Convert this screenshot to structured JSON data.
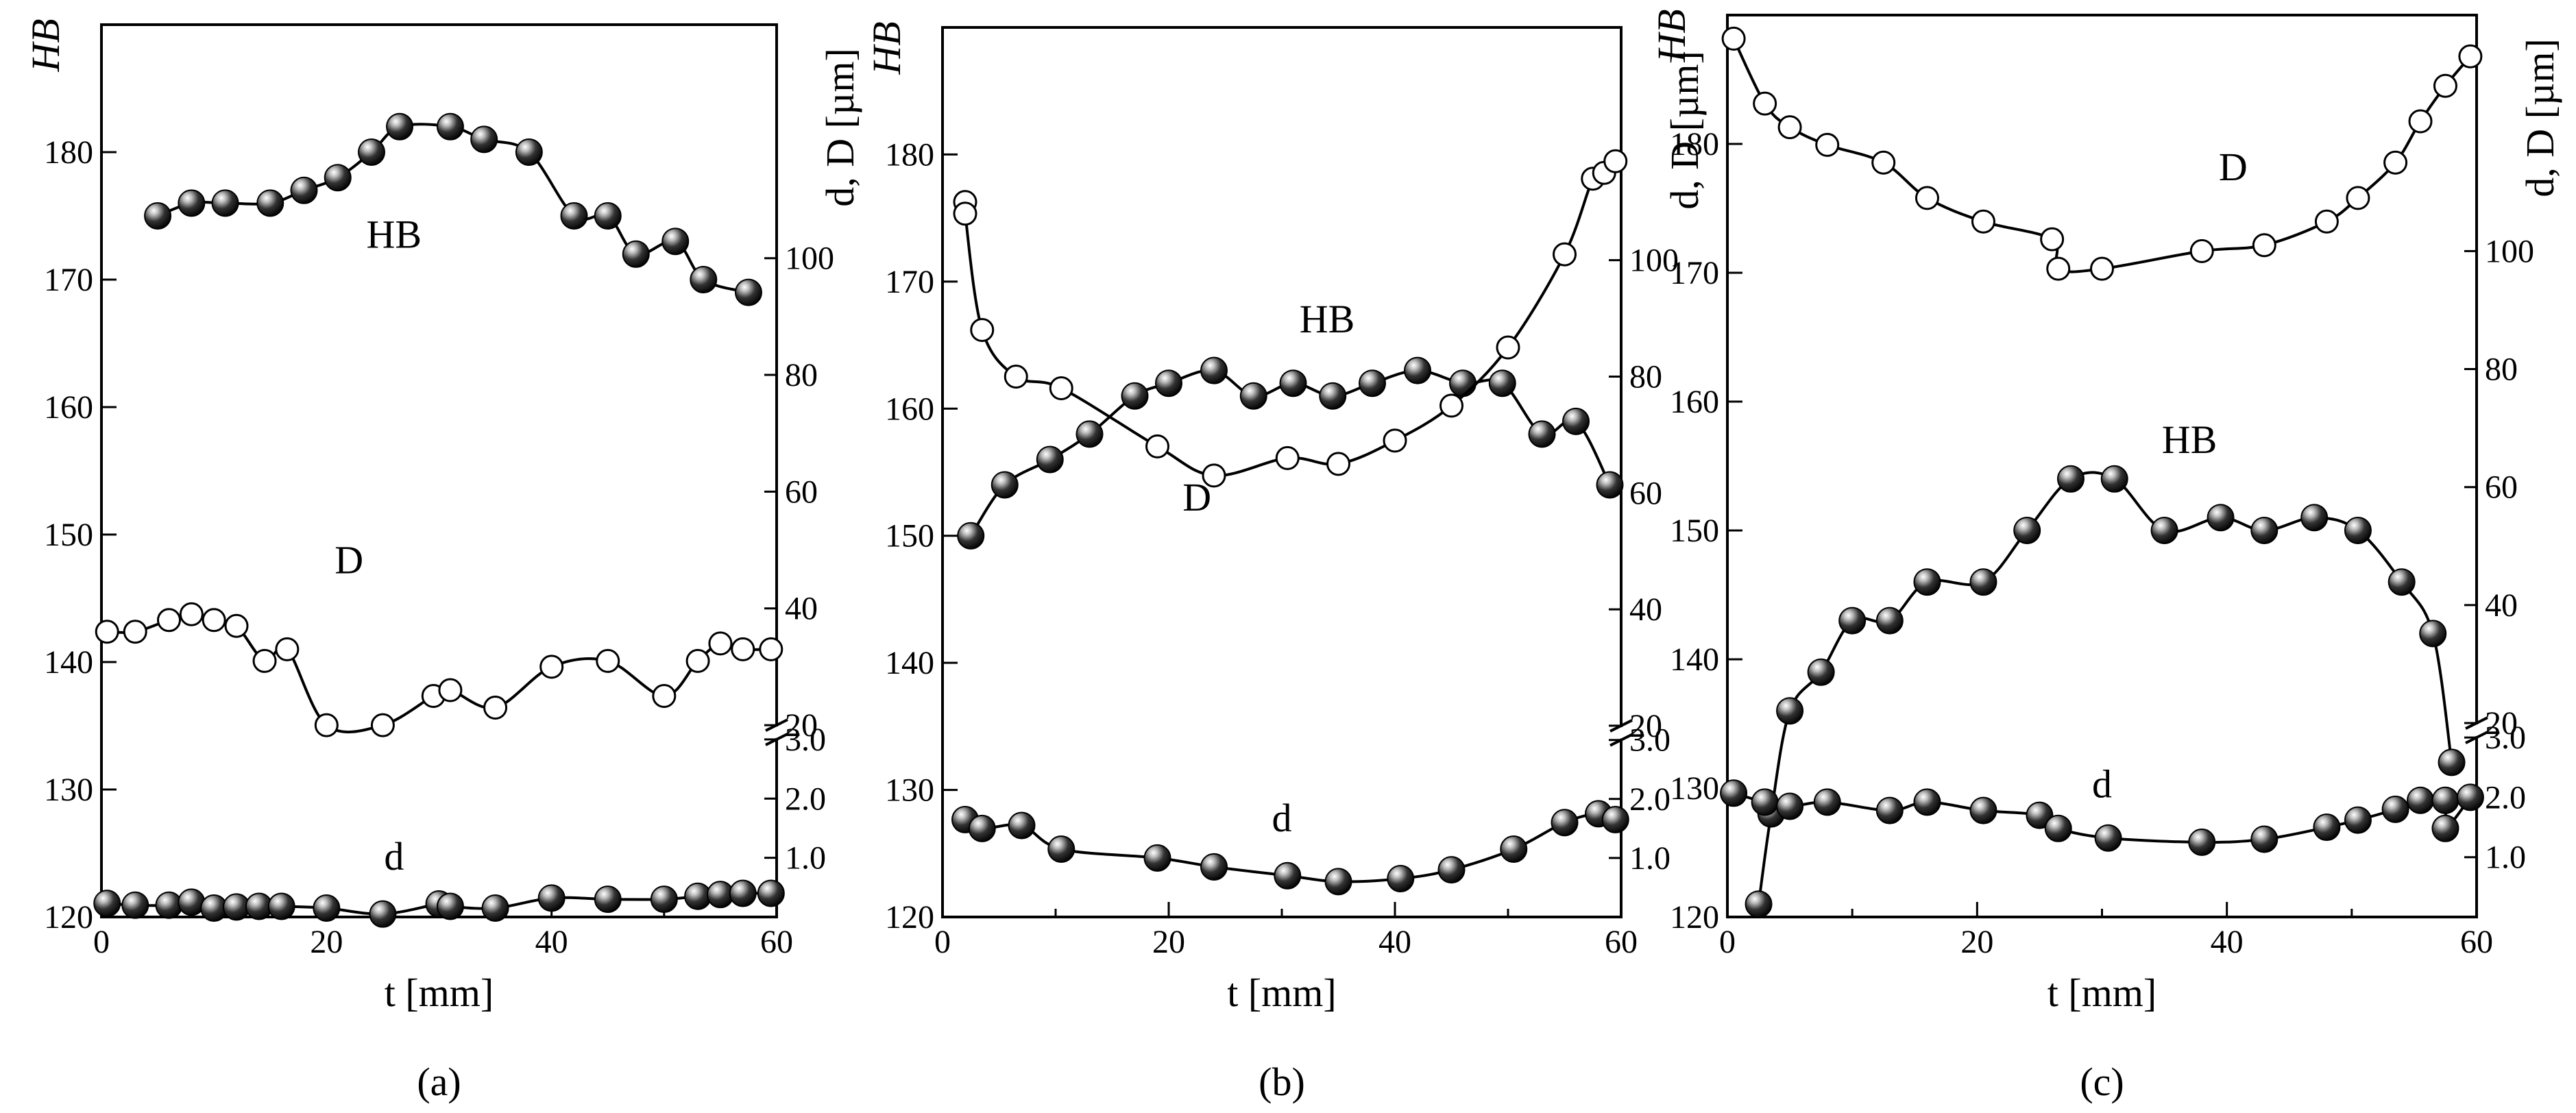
{
  "figure_captions": [
    "(a)",
    "(b)",
    "(c)"
  ],
  "chart_data": [
    {
      "type": "line",
      "panel": "a",
      "caption_letter": "a",
      "xlabel": "t [mm]",
      "ylabel_left": "HB",
      "ylabel_right": "d, D [µm]",
      "xlim": [
        0,
        60
      ],
      "ylim_left": [
        120,
        190
      ],
      "x_ticks": [
        0,
        20,
        40,
        60
      ],
      "y_ticks_left": [
        120,
        130,
        140,
        150,
        160,
        170,
        180
      ],
      "right_axis_upper": {
        "ylim": [
          20,
          140
        ],
        "ticks": [
          20,
          40,
          60,
          80,
          100
        ]
      },
      "right_axis_lower": {
        "ylim": [
          0,
          3.0
        ],
        "ticks": [
          1.0,
          2.0,
          3.0
        ]
      },
      "series": [
        {
          "name": "HB",
          "axis": "left",
          "marker": "sphere",
          "x": [
            5,
            8,
            11,
            15,
            18,
            21,
            24,
            26.5,
            31,
            34,
            38,
            42,
            45,
            47.5,
            51,
            53.5,
            57.5
          ],
          "y": [
            175,
            176,
            176,
            176,
            177,
            178,
            180,
            182,
            182,
            181,
            180,
            175,
            175,
            172,
            173,
            170,
            169
          ],
          "label_at": [
            26,
            172.5
          ]
        },
        {
          "name": "D",
          "axis": "right_upper",
          "marker": "open",
          "x": [
            0.5,
            3,
            6,
            8,
            10,
            12,
            14.5,
            16.5,
            20,
            25,
            29.5,
            31,
            35,
            40,
            45,
            50,
            53,
            55,
            57,
            59.5
          ],
          "y": [
            36,
            36,
            38,
            39,
            38,
            37,
            31,
            33,
            20,
            20,
            25,
            26,
            23,
            30,
            31,
            25,
            31,
            34,
            33,
            33
          ],
          "label_at": [
            22,
            46
          ]
        },
        {
          "name": "d",
          "axis": "right_lower",
          "marker": "sphere",
          "x": [
            0.5,
            3,
            6,
            8,
            10,
            12,
            14,
            16,
            20,
            25,
            30,
            31,
            35,
            40,
            45,
            50,
            53,
            55,
            57,
            59.5
          ],
          "y": [
            0.23,
            0.2,
            0.2,
            0.25,
            0.15,
            0.17,
            0.18,
            0.18,
            0.15,
            0.05,
            0.22,
            0.18,
            0.15,
            0.32,
            0.3,
            0.3,
            0.35,
            0.38,
            0.4,
            0.4
          ],
          "label_at": [
            26,
            0.8
          ]
        }
      ]
    },
    {
      "type": "line",
      "panel": "b",
      "caption_letter": "b",
      "xlabel": "t [mm]",
      "ylabel_left": "HB",
      "ylabel_right": "d, D [µm]",
      "xlim": [
        0,
        60
      ],
      "ylim_left": [
        120,
        190
      ],
      "x_ticks": [
        0,
        20,
        40,
        60
      ],
      "y_ticks_left": [
        120,
        130,
        140,
        150,
        160,
        170,
        180
      ],
      "right_axis_upper": {
        "ylim": [
          20,
          140
        ],
        "ticks": [
          20,
          40,
          60,
          80,
          100
        ]
      },
      "right_axis_lower": {
        "ylim": [
          0,
          3.0
        ],
        "ticks": [
          1.0,
          2.0,
          3.0
        ]
      },
      "series": [
        {
          "name": "HB",
          "axis": "left",
          "marker": "sphere",
          "x": [
            2.5,
            5.5,
            9.5,
            13,
            17,
            20,
            24,
            27.5,
            31,
            34.5,
            38,
            42,
            46,
            49.5,
            53,
            56,
            59
          ],
          "y": [
            150,
            154,
            156,
            158,
            161,
            162,
            163,
            161,
            162,
            161,
            162,
            163,
            162,
            162,
            158,
            159,
            154
          ],
          "label_at": [
            34,
            166
          ]
        },
        {
          "name": "D",
          "axis": "right_upper",
          "marker": "open",
          "x": [
            2,
            2,
            3.5,
            6.5,
            10.5,
            19,
            24,
            30.5,
            35,
            40,
            45,
            50,
            55,
            57.5,
            58.5,
            59.5
          ],
          "y": [
            110,
            108,
            88,
            80,
            78,
            68,
            63,
            66,
            65,
            69,
            75,
            85,
            101,
            114,
            115,
            117
          ],
          "label_at": [
            22.5,
            57
          ]
        },
        {
          "name": "d",
          "axis": "right_lower",
          "marker": "sphere",
          "x": [
            2,
            3.5,
            7,
            10.5,
            19,
            24,
            30.5,
            35,
            40.5,
            45,
            50.5,
            55,
            58,
            59.5
          ],
          "y": [
            1.65,
            1.5,
            1.55,
            1.15,
            1.0,
            0.85,
            0.7,
            0.6,
            0.65,
            0.8,
            1.15,
            1.6,
            1.75,
            1.65
          ],
          "label_at": [
            30,
            1.45
          ]
        }
      ]
    },
    {
      "type": "line",
      "panel": "c",
      "caption_letter": "c",
      "xlabel": "t [mm]",
      "ylabel_left": "HB",
      "ylabel_right": "d, D [µm]",
      "xlim": [
        0,
        60
      ],
      "ylim_left": [
        120,
        190
      ],
      "x_ticks": [
        0,
        20,
        40,
        60
      ],
      "y_ticks_left": [
        120,
        130,
        140,
        150,
        160,
        170,
        180
      ],
      "right_axis_upper": {
        "ylim": [
          20,
          140
        ],
        "ticks": [
          20,
          40,
          60,
          80,
          100
        ]
      },
      "right_axis_lower": {
        "ylim": [
          0,
          3.0
        ],
        "ticks": [
          1.0,
          2.0,
          3.0
        ]
      },
      "series": [
        {
          "name": "HB",
          "axis": "left",
          "marker": "sphere",
          "x": [
            2.5,
            3.5,
            5,
            7.5,
            10,
            13,
            16,
            20.5,
            24,
            27.5,
            31,
            35,
            39.5,
            43,
            47,
            50.5,
            54,
            56.5,
            58
          ],
          "y": [
            121,
            128,
            136,
            139,
            143,
            143,
            146,
            146,
            150,
            154,
            154,
            150,
            151,
            150,
            151,
            150,
            146,
            142,
            132
          ],
          "label_at": [
            37,
            156
          ]
        },
        {
          "name": "D",
          "axis": "right_upper",
          "marker": "open",
          "x": [
            0.5,
            3,
            5,
            8,
            12.5,
            16,
            20.5,
            26,
            26.5,
            30,
            38,
            43,
            48,
            50.5,
            53.5,
            55.5,
            57.5,
            59.5
          ],
          "y": [
            136,
            125,
            121,
            118,
            115,
            109,
            105,
            102,
            97,
            97,
            100,
            101,
            105,
            109,
            115,
            122,
            128,
            133
          ],
          "label_at": [
            40.5,
            112
          ]
        },
        {
          "name": "d",
          "axis": "right_lower",
          "marker": "sphere",
          "x": [
            0.5,
            3,
            5,
            8,
            13,
            16,
            20.5,
            25,
            26.5,
            30.5,
            38,
            43,
            48,
            50.5,
            53.5,
            55.5,
            57.5,
            57.5,
            59.5
          ],
          "y": [
            2.07,
            1.92,
            1.85,
            1.92,
            1.78,
            1.92,
            1.78,
            1.7,
            1.48,
            1.32,
            1.25,
            1.3,
            1.5,
            1.62,
            1.8,
            1.95,
            1.95,
            1.48,
            2.0
          ],
          "label_at": [
            30,
            2.0
          ]
        }
      ]
    }
  ]
}
